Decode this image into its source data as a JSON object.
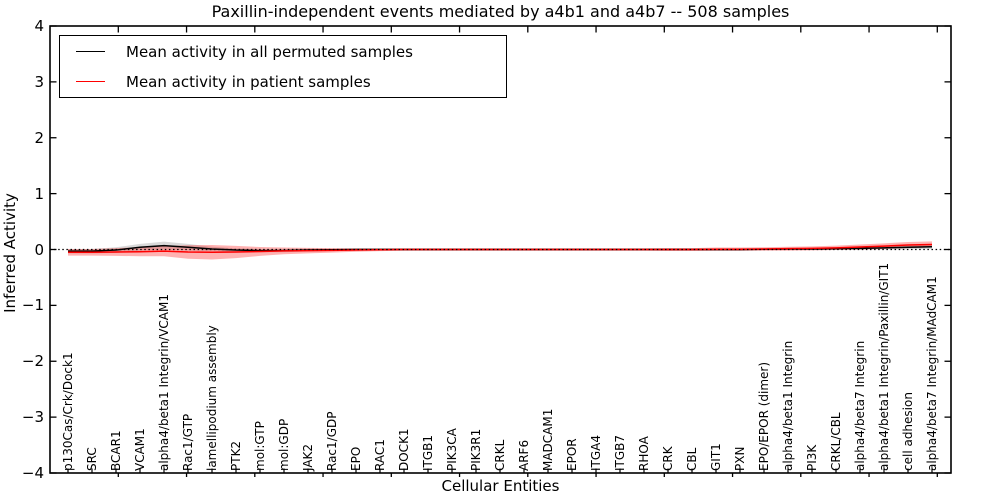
{
  "figure": {
    "background": "#ffffff"
  },
  "legend": {
    "position": "upper left",
    "items": [
      {
        "label": "Mean activity in all permuted samples",
        "color": "#000000"
      },
      {
        "label": "Mean activity in patient samples",
        "color": "#ff0000"
      }
    ]
  },
  "chart_data": {
    "type": "line",
    "title": "Paxillin-independent events mediated by a4b1 and a4b7 -- 508 samples",
    "xlabel": "Cellular Entities",
    "ylabel": "Inferred Activity",
    "ylim": [
      -4,
      4
    ],
    "grid": false,
    "zero_line_style": "dotted",
    "legend_position": "upper left",
    "yticks": [
      {
        "label": "4",
        "value": 4
      },
      {
        "label": "3",
        "value": 3
      },
      {
        "label": "2",
        "value": 2
      },
      {
        "label": "1",
        "value": 1
      },
      {
        "label": "0",
        "value": 0
      },
      {
        "label": "−1",
        "value": -1
      },
      {
        "label": "−2",
        "value": -2
      },
      {
        "label": "−3",
        "value": -3
      },
      {
        "label": "−4",
        "value": -4
      }
    ],
    "categories": [
      "p130Cas/Crk/Dock1",
      "SRC",
      "BCAR1",
      "VCAM1",
      "alpha4/beta1 Integrin/VCAM1",
      "Rac1/GTP",
      "lamellipodium assembly",
      "PTK2",
      "mol:GTP",
      "mol:GDP",
      "JAK2",
      "Rac1/GDP",
      "EPO",
      "RAC1",
      "DOCK1",
      "ITGB1",
      "PIK3CA",
      "PIK3R1",
      "CRKL",
      "ARF6",
      "MADCAM1",
      "EPOR",
      "ITGA4",
      "ITGB7",
      "RHOA",
      "CRK",
      "CBL",
      "GIT1",
      "PXN",
      "EPO/EPOR (dimer)",
      "alpha4/beta1 Integrin",
      "PI3K",
      "CRKL/CBL",
      "alpha4/beta7 Integrin",
      "alpha4/beta1 Integrin/Paxillin/GIT1",
      "cell adhesion",
      "alpha4/beta7 Integrin/MAdCAM1"
    ],
    "series": [
      {
        "name": "Mean activity in all permuted samples",
        "color": "#000000",
        "band_color": "rgba(0,0,0,0.15)",
        "values": [
          -0.03,
          -0.03,
          -0.01,
          0.04,
          0.07,
          0.04,
          0.01,
          -0.01,
          -0.02,
          -0.02,
          -0.01,
          -0.005,
          0,
          0,
          0,
          0,
          0,
          0,
          0,
          0,
          0,
          0,
          0,
          0,
          0,
          0,
          0,
          0,
          0,
          0.005,
          0.01,
          0.01,
          0.015,
          0.02,
          0.03,
          0.04,
          0.05
        ],
        "band_halfwidth": [
          0.04,
          0.04,
          0.05,
          0.06,
          0.07,
          0.06,
          0.04,
          0.03,
          0.03,
          0.03,
          0.025,
          0.02,
          0.02,
          0.02,
          0.02,
          0.02,
          0.02,
          0.02,
          0.02,
          0.02,
          0.02,
          0.02,
          0.02,
          0.02,
          0.02,
          0.02,
          0.02,
          0.02,
          0.02,
          0.02,
          0.02,
          0.02,
          0.025,
          0.025,
          0.03,
          0.035,
          0.04
        ]
      },
      {
        "name": "Mean activity in patient samples",
        "color": "#ff0000",
        "band_color": "rgba(255,0,0,0.3)",
        "values": [
          -0.05,
          -0.05,
          -0.045,
          -0.04,
          -0.03,
          -0.045,
          -0.05,
          -0.045,
          -0.035,
          -0.025,
          -0.02,
          -0.015,
          -0.01,
          -0.005,
          0,
          0,
          0,
          0,
          0,
          0,
          0,
          0,
          0,
          0,
          0,
          0,
          0,
          0.005,
          0.005,
          0.01,
          0.015,
          0.02,
          0.03,
          0.045,
          0.06,
          0.08,
          0.09
        ],
        "band_halfwidth": [
          0.06,
          0.06,
          0.07,
          0.08,
          0.09,
          0.12,
          0.13,
          0.11,
          0.08,
          0.06,
          0.05,
          0.04,
          0.03,
          0.025,
          0.02,
          0.02,
          0.02,
          0.02,
          0.02,
          0.02,
          0.02,
          0.02,
          0.02,
          0.02,
          0.02,
          0.025,
          0.025,
          0.03,
          0.03,
          0.03,
          0.035,
          0.035,
          0.04,
          0.045,
          0.05,
          0.055,
          0.055
        ]
      }
    ]
  }
}
